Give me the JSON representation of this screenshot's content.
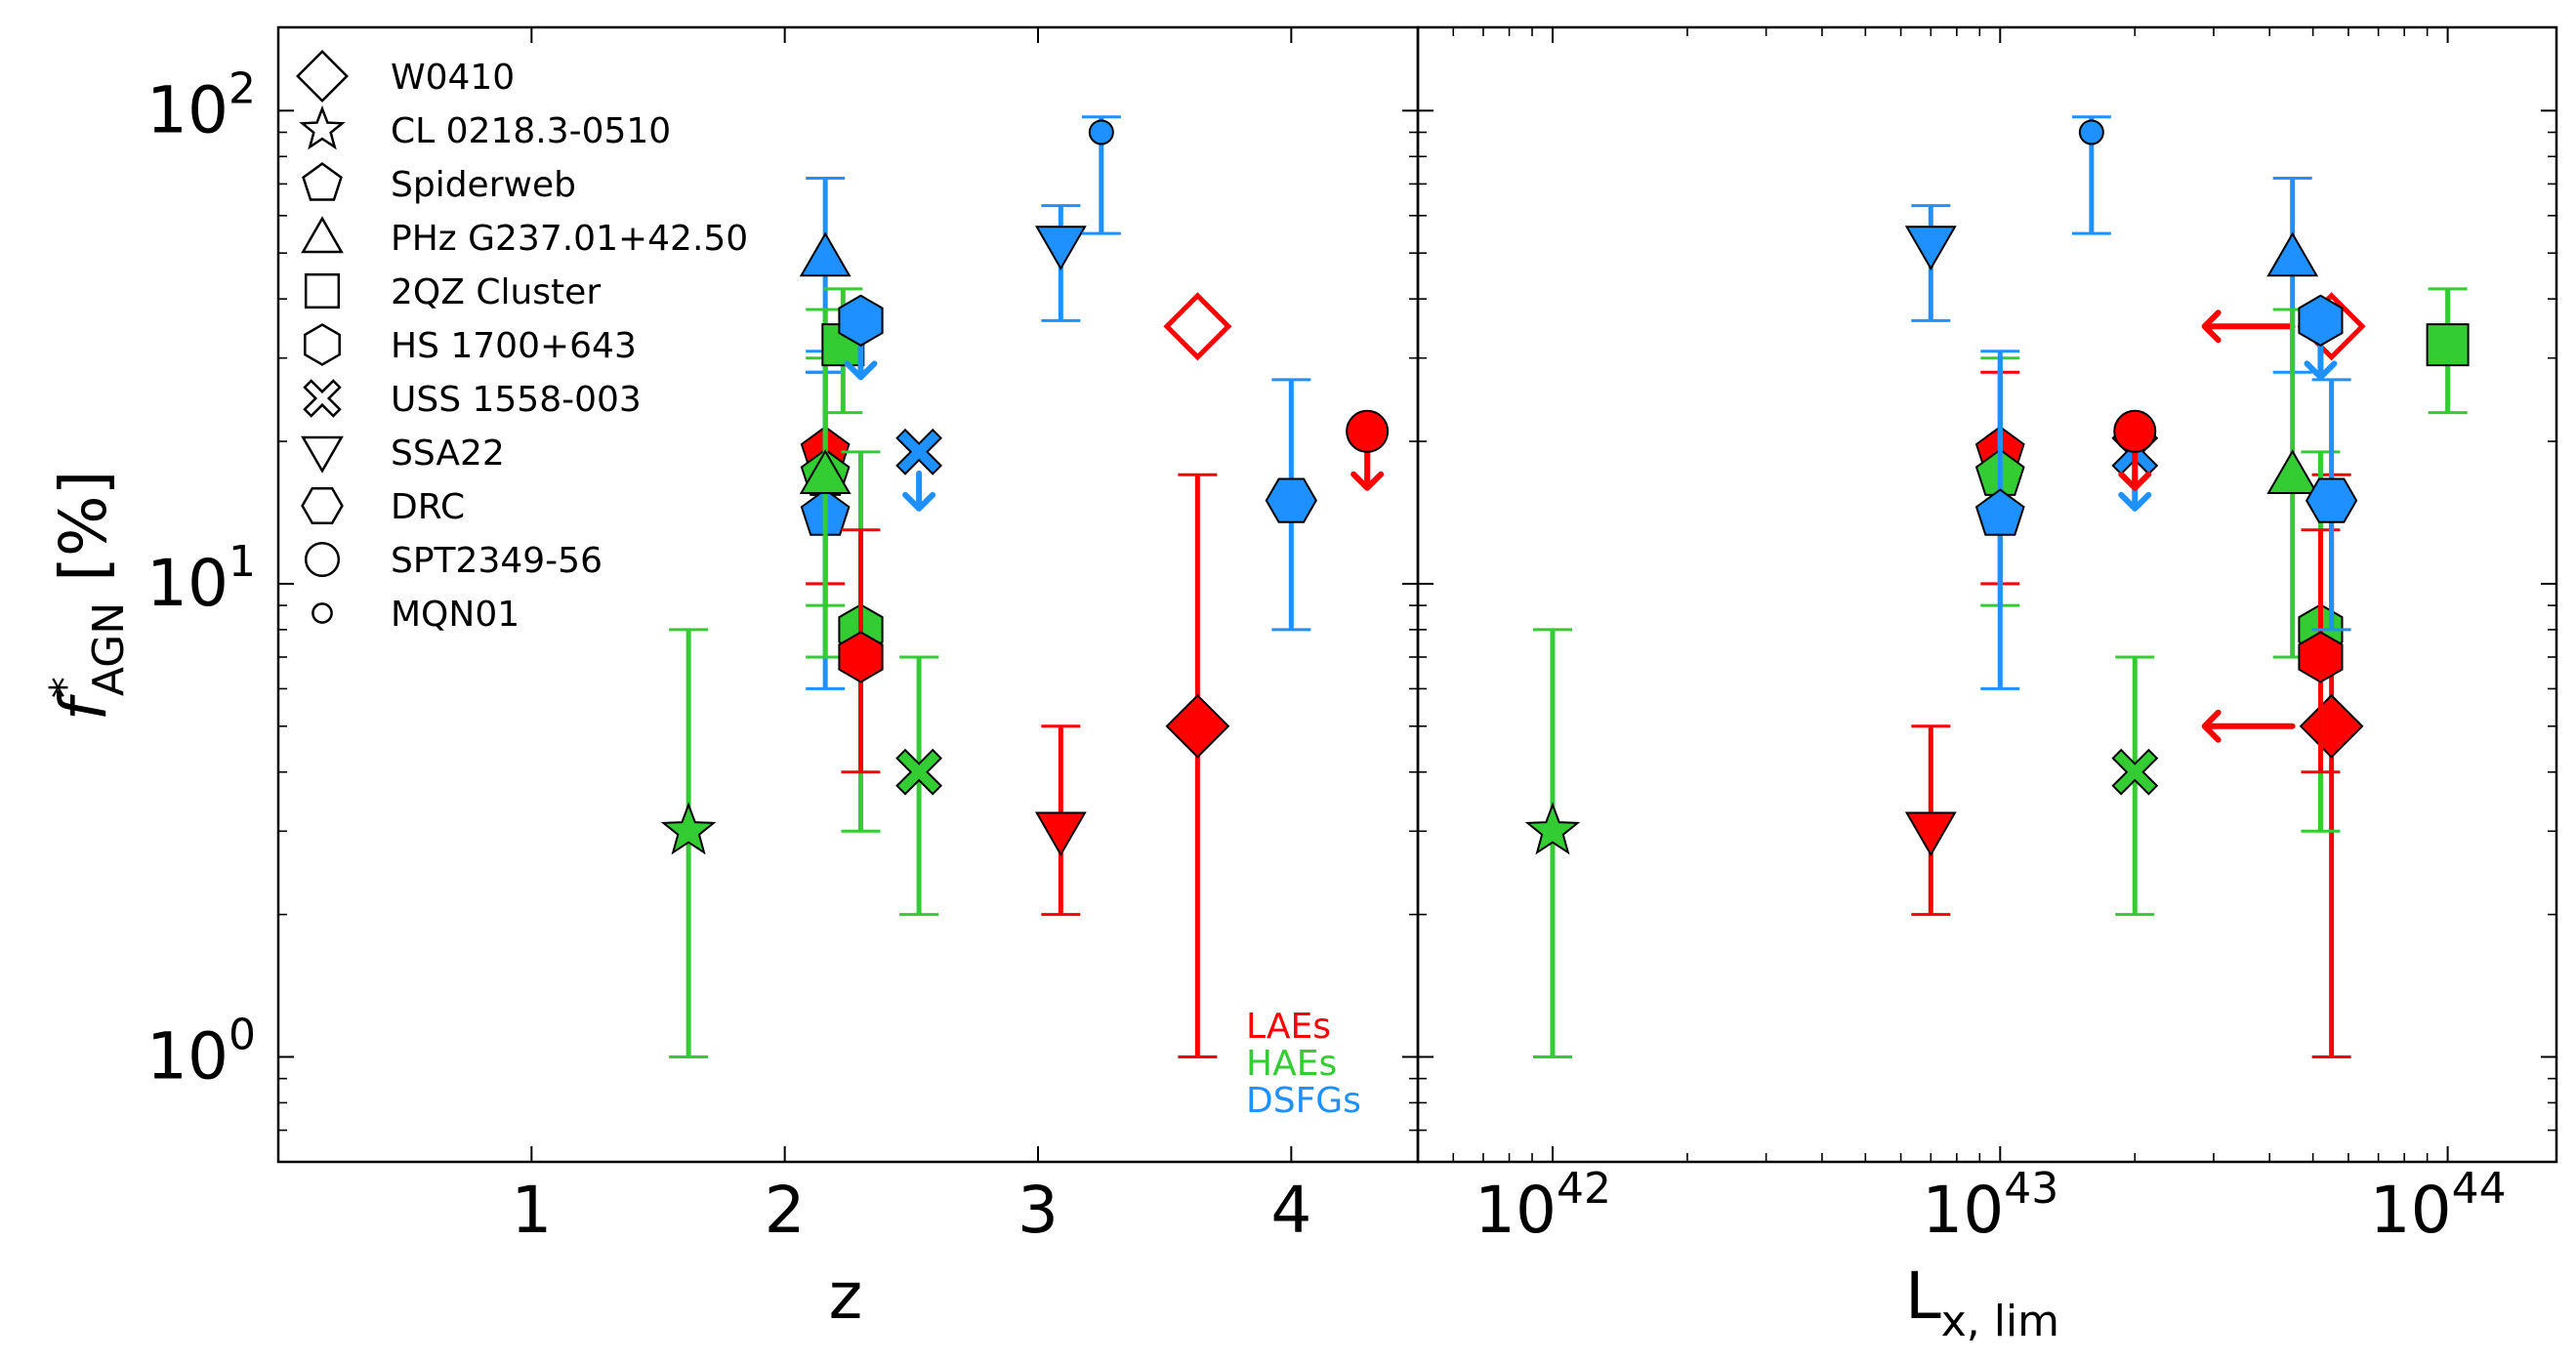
{
  "chart_data": {
    "type": "scatter",
    "legend_placement": "top-left",
    "colors": {
      "LAE": "#ff0000",
      "HAE": "#33cc33",
      "DSFG": "#1e90ff"
    },
    "ylabel_main": "f",
    "ylabel_sup": "*",
    "ylabel_sub": "AGN",
    "ylabel_tail": " [%]",
    "ylim": [
      0.6,
      150
    ],
    "yscale": "log",
    "yticks": [
      {
        "value": 1,
        "base": "10",
        "exp": "0"
      },
      {
        "value": 10,
        "base": "10",
        "exp": "1"
      },
      {
        "value": 100,
        "base": "10",
        "exp": "2"
      }
    ],
    "categories_legend": [
      {
        "label": "LAEs",
        "color": "#ff0000"
      },
      {
        "label": "HAEs",
        "color": "#33cc33"
      },
      {
        "label": "DSFGs",
        "color": "#1e90ff"
      }
    ],
    "legend": [
      {
        "label": "W0410",
        "marker": "diamond"
      },
      {
        "label": "CL 0218.3-0510",
        "marker": "star"
      },
      {
        "label": "Spiderweb",
        "marker": "pentagon"
      },
      {
        "label": "PHz G237.01+42.50",
        "marker": "triangle-up"
      },
      {
        "label": "2QZ Cluster",
        "marker": "square"
      },
      {
        "label": "HS 1700+643",
        "marker": "hexagon"
      },
      {
        "label": "USS 1558-003",
        "marker": "x"
      },
      {
        "label": "SSA22",
        "marker": "triangle-down"
      },
      {
        "label": "DRC",
        "marker": "hexagon-flat"
      },
      {
        "label": "SPT2349-56",
        "marker": "circle"
      },
      {
        "label": "MQN01",
        "marker": "circle-small"
      }
    ],
    "panels": [
      {
        "xlabel": "z",
        "xscale": "linear",
        "xlim": [
          0.0,
          4.5
        ],
        "xticks": [
          {
            "value": 1,
            "label": "1"
          },
          {
            "value": 2,
            "label": "2"
          },
          {
            "value": 3,
            "label": "3"
          },
          {
            "value": 4,
            "label": "4"
          }
        ]
      },
      {
        "xlabel_main": "L",
        "xlabel_sub": "x, lim",
        "xscale": "log",
        "xlim": [
          5e+41,
          1.75e+44
        ],
        "xticks": [
          {
            "value": 1e+42,
            "base": "10",
            "exp": "42"
          },
          {
            "value": 1e+43,
            "base": "10",
            "exp": "43"
          },
          {
            "value": 1e+44,
            "base": "10",
            "exp": "44"
          }
        ]
      }
    ],
    "series": [
      {
        "field": "W0410",
        "pop": "LAE",
        "marker": "diamond",
        "filled": false,
        "z": 3.63,
        "lx": 5.5e+43,
        "y": 35,
        "upper_limit": false,
        "lx_upper_limit": true
      },
      {
        "field": "W0410",
        "pop": "LAE",
        "marker": "diamond",
        "filled": true,
        "z": 3.63,
        "lx": 5.5e+43,
        "y": 5,
        "yerr": [
          1,
          17
        ],
        "lx_upper_limit": true
      },
      {
        "field": "CL 0218.3-0510",
        "pop": "HAE",
        "marker": "star",
        "filled": true,
        "z": 1.62,
        "lx": 1e+42,
        "y": 3,
        "yerr": [
          1,
          8
        ]
      },
      {
        "field": "Spiderweb",
        "pop": "LAE",
        "marker": "pentagon",
        "filled": true,
        "z": 2.16,
        "lx": 1e+43,
        "y": 19,
        "yerr": [
          10,
          28
        ]
      },
      {
        "field": "Spiderweb",
        "pop": "HAE",
        "marker": "pentagon",
        "filled": true,
        "z": 2.16,
        "lx": 1e+43,
        "y": 17,
        "yerr": [
          9,
          30
        ]
      },
      {
        "field": "Spiderweb",
        "pop": "DSFG",
        "marker": "pentagon",
        "filled": true,
        "z": 2.16,
        "lx": 1e+43,
        "y": 14,
        "yerr": [
          6,
          31
        ]
      },
      {
        "field": "PHz G237.01+42.50",
        "pop": "DSFG",
        "marker": "triangle-up",
        "filled": true,
        "z": 2.16,
        "lx": 4.5e+43,
        "y": 49,
        "yerr": [
          28,
          72
        ]
      },
      {
        "field": "PHz G237.01+42.50",
        "pop": "HAE",
        "marker": "triangle-up",
        "filled": true,
        "z": 2.16,
        "lx": 4.5e+43,
        "y": 17,
        "yerr": [
          7,
          38
        ]
      },
      {
        "field": "2QZ Cluster",
        "pop": "HAE",
        "marker": "square",
        "filled": true,
        "z": 2.23,
        "lx": 1e+44,
        "y": 32,
        "yerr": [
          23,
          42
        ]
      },
      {
        "field": "HS 1700+643",
        "pop": "DSFG",
        "marker": "hexagon",
        "filled": true,
        "z": 2.3,
        "lx": 5.2e+43,
        "y": 36,
        "upper_limit": true
      },
      {
        "field": "HS 1700+643",
        "pop": "HAE",
        "marker": "hexagon",
        "filled": true,
        "z": 2.3,
        "lx": 5.2e+43,
        "y": 8,
        "yerr": [
          3,
          19
        ]
      },
      {
        "field": "HS 1700+643",
        "pop": "LAE",
        "marker": "hexagon",
        "filled": true,
        "z": 2.3,
        "lx": 5.2e+43,
        "y": 7,
        "yerr": [
          4,
          13
        ]
      },
      {
        "field": "USS 1558-003",
        "pop": "DSFG",
        "marker": "x",
        "filled": true,
        "z": 2.53,
        "lx": 2e+43,
        "y": 19,
        "upper_limit": true
      },
      {
        "field": "USS 1558-003",
        "pop": "HAE",
        "marker": "x",
        "filled": true,
        "z": 2.53,
        "lx": 2e+43,
        "y": 4,
        "yerr": [
          2,
          7
        ]
      },
      {
        "field": "SSA22",
        "pop": "DSFG",
        "marker": "triangle-down",
        "filled": true,
        "z": 3.09,
        "lx": 7e+42,
        "y": 52,
        "yerr": [
          36,
          63
        ]
      },
      {
        "field": "SSA22",
        "pop": "LAE",
        "marker": "triangle-down",
        "filled": true,
        "z": 3.09,
        "lx": 7e+42,
        "y": 3,
        "yerr": [
          2,
          5
        ]
      },
      {
        "field": "DRC",
        "pop": "DSFG",
        "marker": "hexagon-flat",
        "filled": true,
        "z": 4.0,
        "lx": 5.5e+43,
        "y": 15,
        "yerr": [
          8,
          27
        ]
      },
      {
        "field": "SPT2349-56",
        "pop": "LAE",
        "marker": "circle",
        "filled": true,
        "z": 4.3,
        "lx": 2e+43,
        "y": 21,
        "upper_limit": true
      },
      {
        "field": "MQN01",
        "pop": "DSFG",
        "marker": "circle-small",
        "filled": true,
        "z": 3.25,
        "lx": 1.6e+43,
        "y": 90,
        "yerr": [
          55,
          97
        ]
      }
    ]
  }
}
